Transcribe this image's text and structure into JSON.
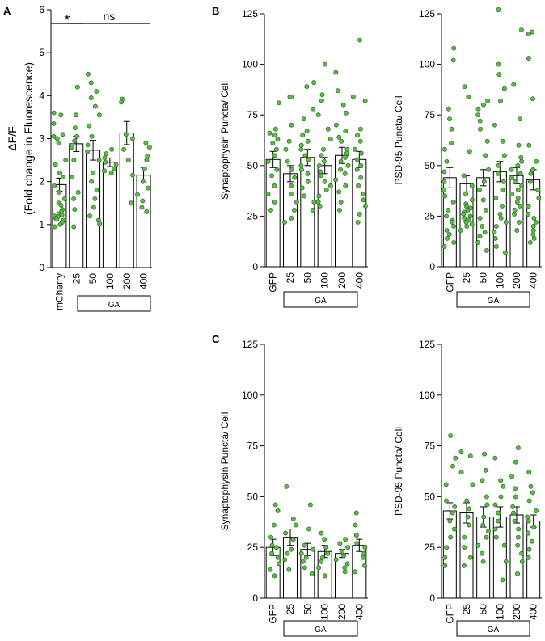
{
  "chart_data": [
    {
      "id": "A",
      "panel_label": "A",
      "type": "bar",
      "ylabel_lines": [
        "ΔF/F",
        "(Fold change in Fluorescence)"
      ],
      "ylim": [
        0,
        6
      ],
      "yticks": [
        0,
        1,
        2,
        3,
        4,
        5,
        6
      ],
      "categories": [
        "mCherry",
        "25",
        "50",
        "100",
        "200",
        "400"
      ],
      "group_label": "GA",
      "group_start_index": 1,
      "means": [
        1.93,
        2.88,
        2.73,
        2.45,
        3.13,
        2.15
      ],
      "sem": [
        0.15,
        0.18,
        0.23,
        0.1,
        0.27,
        0.18
      ],
      "points": [
        [
          3.6,
          3.55,
          3.35,
          3.1,
          3.05,
          3.0,
          2.9,
          2.5,
          2.4,
          2.2,
          2.1,
          1.9,
          1.75,
          1.6,
          1.5,
          1.45,
          1.35,
          1.3,
          1.25,
          1.22,
          1.2,
          1.18,
          1.15,
          1.12,
          1.1,
          1.05,
          1.0,
          0.95
        ],
        [
          4.2,
          3.55,
          3.25,
          3.05,
          2.95,
          2.8,
          2.5,
          2.1,
          1.75,
          1.6,
          1.35,
          0.95
        ],
        [
          4.5,
          4.3,
          4.1,
          3.95,
          3.75,
          3.55,
          3.3,
          3.05,
          2.85,
          2.7,
          2.5,
          2.2,
          2.0,
          1.8,
          1.6,
          1.4,
          1.2,
          1.1,
          1.02
        ],
        [
          2.75,
          2.65,
          2.55,
          2.45,
          2.4,
          2.3,
          2.25,
          2.2
        ],
        [
          3.92,
          3.85,
          3.1,
          3.0,
          2.75,
          2.5,
          2.15,
          1.5
        ],
        [
          2.9,
          2.8,
          2.6,
          2.5,
          2.3,
          2.0,
          1.85,
          1.7,
          1.55,
          1.4,
          1.3
        ]
      ],
      "annotations": [
        {
          "text": "*",
          "from": 0,
          "to": 1
        },
        {
          "text": "ns",
          "from": 1,
          "to": 5
        }
      ]
    },
    {
      "id": "B1",
      "panel_label": "B",
      "type": "bar",
      "ylabel": "Synaptophysin Puncta/ Cell",
      "ylim": [
        0,
        125
      ],
      "yticks": [
        0,
        25,
        50,
        75,
        100,
        125
      ],
      "categories": [
        "GFP",
        "25",
        "50",
        "100",
        "200",
        "400"
      ],
      "group_label": "GA",
      "group_start_index": 1,
      "means": [
        53,
        46,
        54,
        50,
        55,
        53
      ],
      "sem": [
        4,
        4,
        4,
        4,
        4,
        4
      ],
      "points": [
        [
          81,
          68,
          66,
          65,
          63,
          61,
          58,
          55,
          52,
          48,
          45,
          40,
          36,
          32,
          28
        ],
        [
          84,
          84,
          70,
          62,
          58,
          52,
          48,
          44,
          40,
          36,
          32,
          28,
          24,
          22
        ],
        [
          91,
          89,
          78,
          73,
          67,
          65,
          62,
          60,
          58,
          55,
          53,
          50,
          48,
          46,
          42,
          39,
          35,
          32,
          28
        ],
        [
          100,
          85,
          82,
          75,
          68,
          63,
          58,
          55,
          52,
          50,
          47,
          45,
          42,
          40,
          38,
          35,
          32,
          30
        ],
        [
          96,
          87,
          80,
          76,
          70,
          67,
          64,
          62,
          58,
          56,
          54,
          52,
          50,
          48,
          46,
          43,
          40,
          37,
          32,
          28
        ],
        [
          112,
          84,
          82,
          68,
          65,
          62,
          58,
          56,
          53,
          50,
          48,
          44,
          40,
          36,
          33,
          30,
          26,
          22
        ]
      ]
    },
    {
      "id": "B2",
      "panel_label": "",
      "type": "bar",
      "ylabel": "PSD-95 Puncta/ Cell",
      "ylim": [
        0,
        125
      ],
      "yticks": [
        0,
        25,
        50,
        75,
        100,
        125
      ],
      "categories": [
        "GFP",
        "25",
        "50",
        "100",
        "200",
        "400"
      ],
      "group_label": "GA",
      "group_start_index": 1,
      "means": [
        44,
        41,
        44,
        47,
        45,
        43
      ],
      "sem": [
        5,
        4,
        4,
        5,
        4,
        5
      ],
      "points": [
        [
          108,
          102,
          78,
          73,
          68,
          61,
          58,
          52,
          47,
          42,
          38,
          35,
          32,
          28,
          25,
          23,
          22,
          20,
          18,
          16,
          14,
          12,
          10
        ],
        [
          89,
          84,
          57,
          45,
          40,
          36,
          33,
          31,
          30,
          29,
          28,
          27,
          26,
          25,
          24,
          23,
          22,
          21,
          20,
          18
        ],
        [
          82,
          80,
          78,
          75,
          72,
          68,
          62,
          55,
          48,
          42,
          38,
          33,
          28,
          24,
          20,
          17,
          15,
          12,
          8
        ],
        [
          127,
          100,
          95,
          88,
          82,
          70,
          62,
          55,
          50,
          46,
          42,
          38,
          34,
          30,
          26,
          24,
          22,
          20,
          17,
          14,
          10,
          7
        ],
        [
          117,
          90,
          73,
          60,
          54,
          52,
          50,
          48,
          46,
          44,
          42,
          40,
          38,
          36,
          34,
          32,
          30,
          28,
          26,
          22,
          18
        ],
        [
          116,
          115,
          103,
          83,
          60,
          52,
          48,
          46,
          42,
          38,
          34,
          30,
          26,
          24,
          22,
          20,
          18,
          16,
          14,
          12
        ]
      ]
    },
    {
      "id": "C1",
      "panel_label": "C",
      "type": "bar",
      "ylabel": "Synaptophysin Puncta/ Cell",
      "ylim": [
        0,
        125
      ],
      "yticks": [
        0,
        25,
        50,
        75,
        100,
        125
      ],
      "categories": [
        "GFP",
        "25",
        "50",
        "100",
        "200",
        "400"
      ],
      "group_label": "GA",
      "group_start_index": 1,
      "means": [
        25,
        30,
        24,
        23,
        22,
        26
      ],
      "sem": [
        4,
        4,
        3,
        3,
        2,
        3
      ],
      "points": [
        [
          46,
          43,
          36,
          30,
          26,
          25,
          22,
          20,
          17,
          14,
          11
        ],
        [
          55,
          39,
          36,
          32,
          29,
          24,
          22,
          19,
          14
        ],
        [
          46,
          34,
          26,
          24,
          22,
          20,
          18,
          15,
          12
        ],
        [
          32,
          29,
          25,
          22,
          20,
          18,
          15,
          11
        ],
        [
          29,
          27,
          25,
          23,
          21,
          19,
          17,
          15,
          13
        ],
        [
          42,
          36,
          31,
          27,
          25,
          22,
          20,
          16,
          13
        ]
      ]
    },
    {
      "id": "C2",
      "panel_label": "",
      "type": "bar",
      "ylabel": "PSD-95 Puncta/ Cell",
      "ylim": [
        0,
        125
      ],
      "yticks": [
        0,
        25,
        50,
        75,
        100,
        125
      ],
      "categories": [
        "GFP",
        "25",
        "50",
        "100",
        "200",
        "400"
      ],
      "group_label": "GA",
      "group_start_index": 1,
      "means": [
        43,
        42,
        40,
        40,
        41,
        38
      ],
      "sem": [
        4,
        5,
        5,
        5,
        4,
        3
      ],
      "points": [
        [
          80,
          69,
          65,
          56,
          48,
          45,
          42,
          38,
          34,
          30,
          25,
          20,
          16
        ],
        [
          72,
          70,
          62,
          56,
          48,
          44,
          40,
          36,
          30,
          25,
          20,
          16
        ],
        [
          71,
          63,
          58,
          50,
          46,
          40,
          36,
          33,
          30,
          26,
          22,
          18
        ],
        [
          69,
          58,
          55,
          50,
          46,
          42,
          38,
          34,
          30,
          26,
          18,
          9
        ],
        [
          74,
          67,
          60,
          54,
          50,
          45,
          42,
          38,
          34,
          30,
          26,
          22,
          18,
          12
        ],
        [
          62,
          55,
          52,
          48,
          43,
          40,
          38,
          35,
          32,
          28,
          24,
          20
        ]
      ]
    }
  ],
  "colors": {
    "dot_fill": "#5dbb4a",
    "dot_stroke": "#2f6b22",
    "bar_fill": "#ffffff",
    "bar_stroke": "#000000"
  }
}
